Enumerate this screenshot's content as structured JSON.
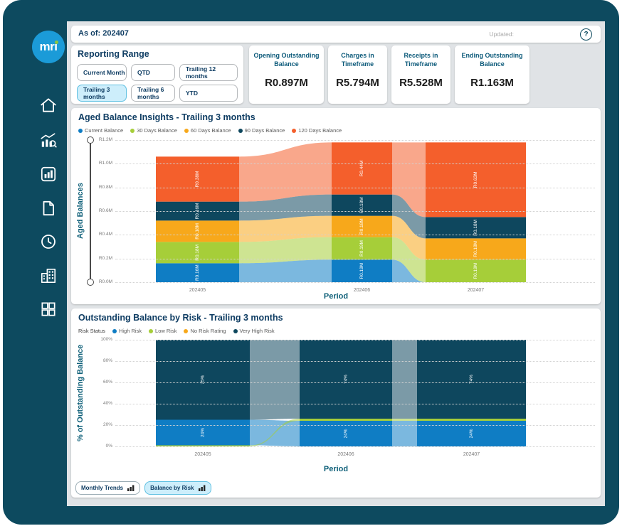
{
  "theme": {
    "frame_color": "#0d4a5f",
    "content_bg": "#e0e3e6",
    "card_bg": "#ffffff",
    "title_color": "#0f3d63",
    "axis_title_color": "#0f6079",
    "selected_bg": "#cdeefb",
    "selected_border": "#5fc0e1",
    "logo_bg": "#1b9bd8",
    "logo_dot": "#8dc63f"
  },
  "sidebar": {
    "logo_text": "mri",
    "icons": [
      "home-icon",
      "chart-search-icon",
      "bar-chart-report-icon",
      "document-icon",
      "clock-icon",
      "building-icon",
      "grid-icon"
    ]
  },
  "header": {
    "as_of": "As of: 202407",
    "updated_label": "Updated:",
    "help_icon": "?"
  },
  "reporting_range": {
    "title": "Reporting Range",
    "buttons": [
      {
        "label": "Current Month",
        "selected": false
      },
      {
        "label": "QTD",
        "selected": false
      },
      {
        "label": "Trailing 12 months",
        "selected": false
      },
      {
        "label": "Trailing 3 months",
        "selected": true
      },
      {
        "label": "Trailing 6 months",
        "selected": false
      },
      {
        "label": "YTD",
        "selected": false
      }
    ]
  },
  "kpis": [
    {
      "title": "Opening Outstanding Balance",
      "value": "R0.897M"
    },
    {
      "title": "Charges in Timeframe",
      "value": "R5.794M"
    },
    {
      "title": "Receipts in Timeframe",
      "value": "R5.528M"
    },
    {
      "title": "Ending Outstanding Balance",
      "value": "R1.163M"
    }
  ],
  "footer_tabs": [
    {
      "label": "Monthly Trends",
      "selected": false
    },
    {
      "label": "Balance by Risk",
      "selected": true
    }
  ],
  "chart_data": [
    {
      "type": "area",
      "variant": "ribbon",
      "title": "Aged Balance Insights - Trailing 3 months",
      "categories": [
        "202405",
        "202406",
        "202407"
      ],
      "series": [
        {
          "name": "Current Balance",
          "color": "#0f7dc4",
          "values": [
            0.16,
            0.19,
            0
          ],
          "labels": [
            "R0.16M",
            "R0.19M",
            null
          ]
        },
        {
          "name": "30 Days Balance",
          "color": "#a6ce39",
          "values": [
            0.18,
            0.19,
            0.19
          ],
          "labels": [
            "R0.18M",
            "R0.19M",
            "R0.19M"
          ]
        },
        {
          "name": "60 Days Balance",
          "color": "#f7a81b",
          "values": [
            0.18,
            0.18,
            0.18
          ],
          "labels": [
            "R0.18M",
            "R0.18M",
            "R0.18M"
          ]
        },
        {
          "name": "90 Days Balance",
          "color": "#0e475e",
          "values": [
            0.16,
            0.18,
            0.18
          ],
          "labels": [
            "R0.16M",
            "R0.18M",
            "R0.18M"
          ]
        },
        {
          "name": "120 Days Balance",
          "color": "#f45f2c",
          "values": [
            0.38,
            0.44,
            0.63
          ],
          "labels": [
            "R0.38M",
            "R0.44M",
            "R0.63M"
          ]
        }
      ],
      "stack_order": [
        [
          0,
          1,
          2,
          3,
          4
        ],
        [
          0,
          1,
          2,
          3,
          4
        ],
        [
          1,
          2,
          3,
          4
        ]
      ],
      "xlabel": "Period",
      "ylabel": "Aged Balances",
      "y_ticks": [
        "R1.2M",
        "R1.0M",
        "R0.8M",
        "R0.6M",
        "R0.4M",
        "R0.2M",
        "R0.0M"
      ],
      "ylim": [
        0,
        1.2
      ],
      "grid": true,
      "legend_position": "top"
    },
    {
      "type": "area",
      "variant": "ribbon-100percent",
      "title": "Outstanding Balance by Risk - Trailing 3 months",
      "legend_title": "Risk Status",
      "categories": [
        "202405",
        "202406",
        "202407"
      ],
      "series": [
        {
          "name": "High Risk",
          "color": "#0f7dc4",
          "values": [
            24,
            24,
            24
          ],
          "labels": [
            "24%",
            "24%",
            "24%"
          ]
        },
        {
          "name": "Low Risk",
          "color": "#a6ce39",
          "values": [
            1,
            2,
            2
          ],
          "labels": [
            null,
            null,
            null
          ]
        },
        {
          "name": "No Risk Rating",
          "color": "#f7a81b",
          "values": [
            0,
            0,
            0
          ],
          "labels": [
            null,
            null,
            null
          ]
        },
        {
          "name": "Very High Risk",
          "color": "#0e475e",
          "values": [
            75,
            74,
            74
          ],
          "labels": [
            "75%",
            "74%",
            "74%"
          ]
        }
      ],
      "stack_order": [
        [
          1,
          0,
          3
        ],
        [
          0,
          1,
          3
        ],
        [
          0,
          1,
          3
        ]
      ],
      "xlabel": "Period",
      "ylabel": "% of Outstanding Balance",
      "y_ticks": [
        "100%",
        "80%",
        "60%",
        "40%",
        "20%",
        "0%"
      ],
      "ylim": [
        0,
        100
      ],
      "grid": true,
      "legend_position": "top"
    }
  ]
}
